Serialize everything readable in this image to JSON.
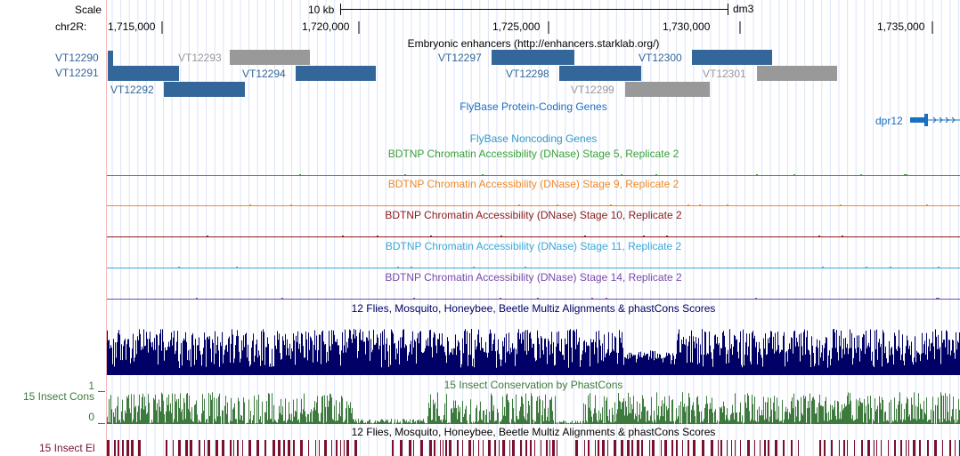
{
  "scale": {
    "label": "Scale",
    "bar_label": "10 kb",
    "assembly": "dm3"
  },
  "ruler": {
    "chrom_label": "chr2R:",
    "ticks": [
      "1,715,000",
      "1,720,000",
      "1,725,000",
      "1,730,000",
      "1,735,000"
    ]
  },
  "tracks": {
    "enhancers": {
      "title": "Embryonic enhancers (http://enhancers.starklab.org/)",
      "colors": {
        "active": "#336699",
        "inactive": "#999999"
      },
      "items": [
        {
          "id": "VT12290",
          "status": "active"
        },
        {
          "id": "VT12291",
          "status": "active"
        },
        {
          "id": "VT12292",
          "status": "active"
        },
        {
          "id": "VT12293",
          "status": "inactive"
        },
        {
          "id": "VT12294",
          "status": "active"
        },
        {
          "id": "VT12297",
          "status": "active"
        },
        {
          "id": "VT12298",
          "status": "active"
        },
        {
          "id": "VT12299",
          "status": "inactive"
        },
        {
          "id": "VT12300",
          "status": "active"
        },
        {
          "id": "VT12301",
          "status": "inactive"
        }
      ]
    },
    "flybase_coding": {
      "title": "FlyBase Protein-Coding Genes",
      "color": "#1a6fbf",
      "gene": {
        "name": "dpr12",
        "icon": "gene-model-arrows-icon"
      }
    },
    "flybase_noncoding": {
      "title": "FlyBase Noncoding Genes",
      "color": "#3399cc"
    },
    "dnase": [
      {
        "title": "BDTNP Chromatin Accessibility (DNase) Stage 5, Replicate 2",
        "color": "#3aa03a"
      },
      {
        "title": "BDTNP Chromatin Accessibility (DNase) Stage 9, Replicate 2",
        "color": "#ef8a2a"
      },
      {
        "title": "BDTNP Chromatin Accessibility (DNase) Stage 10, Replicate 2",
        "color": "#8b1a1a"
      },
      {
        "title": "BDTNP Chromatin Accessibility (DNase) Stage 11, Replicate 2",
        "color": "#3aa8d8"
      },
      {
        "title": "BDTNP Chromatin Accessibility (DNase) Stage 14, Replicate 2",
        "color": "#7a4aa8"
      }
    ],
    "multiz": {
      "title": "12 Flies, Mosquito, Honeybee, Beetle Multiz Alignments & phastCons Scores",
      "color": "#000066"
    },
    "phastcons": {
      "title": "15 Insect Conservation by PhastCons",
      "side_label": "15 Insect Cons",
      "axis_max": "1",
      "axis_min": "0",
      "color": "#3d7a3d"
    },
    "elements": {
      "title": "12 Flies, Mosquito, Honeybee, Beetle Multiz Alignments & phastCons Scores",
      "side_label": "15 Insect El",
      "color": "#7a0f2e"
    }
  }
}
